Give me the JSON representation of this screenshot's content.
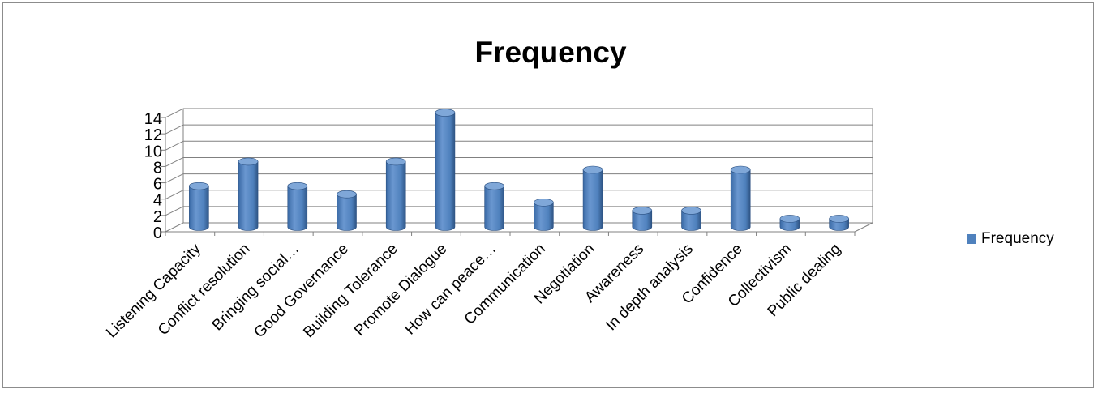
{
  "chart_data": {
    "type": "bar",
    "title": "Frequency",
    "categories": [
      "Listening Capacity",
      "Conflict resolution",
      "Bringing  social…",
      "Good Governance",
      "Building Tolerance",
      "Promote Dialogue",
      "How can peace…",
      "Communication",
      "Negotiation",
      "Awareness",
      "In depth analysis",
      "Confidence",
      "Collectivism",
      "Public dealing"
    ],
    "series": [
      {
        "name": "Frequency",
        "values": [
          5,
          8,
          5,
          4,
          8,
          14,
          5,
          3,
          7,
          2,
          2,
          7,
          1,
          1
        ]
      }
    ],
    "ylim": [
      0,
      14
    ],
    "yticks": [
      0,
      2,
      4,
      6,
      8,
      10,
      12,
      14
    ],
    "grid": true,
    "legend": "right",
    "colors": {
      "bar": "#4f81bd",
      "bar_dark": "#2f5585",
      "bar_top": "#7fa7d8",
      "grid": "#808080"
    }
  }
}
